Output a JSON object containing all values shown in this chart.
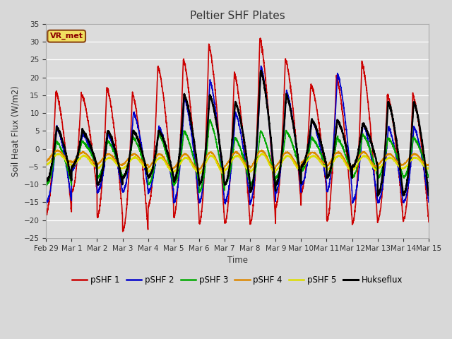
{
  "title": "Peltier SHF Plates",
  "xlabel": "Time",
  "ylabel": "Soil Heat Flux (W/m2)",
  "ylim": [
    -25,
    35
  ],
  "yticks": [
    -25,
    -20,
    -15,
    -10,
    -5,
    0,
    5,
    10,
    15,
    20,
    25,
    30,
    35
  ],
  "fig_bg_color": "#d8d8d8",
  "plot_bg_color": "#dcdcdc",
  "grid_color": "#ffffff",
  "series_colors": {
    "pSHF 1": "#cc0000",
    "pSHF 2": "#0000cc",
    "pSHF 3": "#00aa00",
    "pSHF 4": "#dd8800",
    "pSHF 5": "#dddd00",
    "Hukseflux": "#000000"
  },
  "series_lw": {
    "pSHF 1": 1.2,
    "pSHF 2": 1.2,
    "pSHF 3": 1.2,
    "pSHF 4": 1.2,
    "pSHF 5": 1.2,
    "Hukseflux": 1.8
  },
  "annotation_text": "VR_met",
  "xtick_labels": [
    "Feb 29",
    "Mar 1",
    "Mar 2",
    "Mar 3",
    "Mar 4",
    "Mar 5",
    "Mar 6",
    "Mar 7",
    "Mar 8",
    "Mar 9",
    "Mar 10",
    "Mar 11",
    "Mar 12",
    "Mar 13",
    "Mar 14",
    "Mar 15"
  ],
  "n_days": 15
}
